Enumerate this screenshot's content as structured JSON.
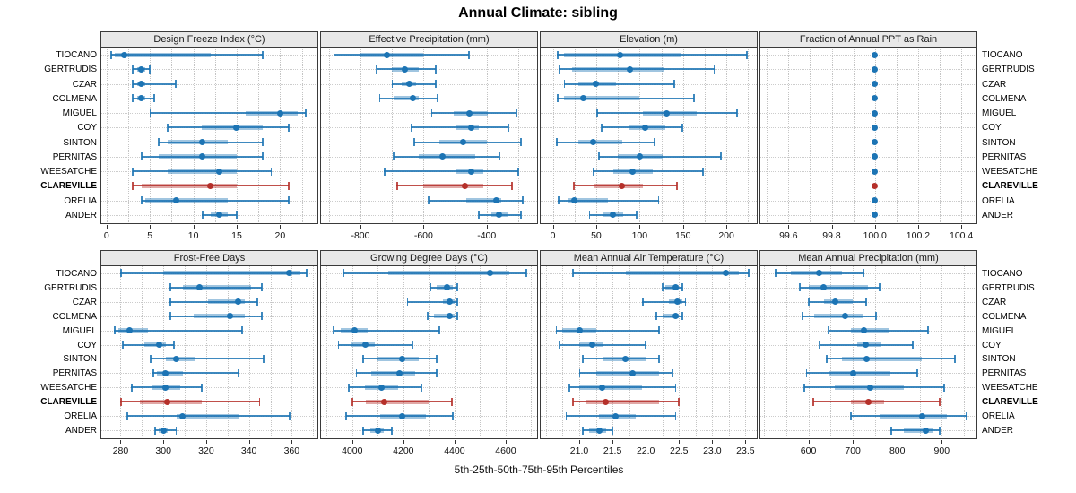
{
  "title": "Annual Climate: sibling",
  "footer_label": "5th-25th-50th-75th-95th Percentiles",
  "percentile_levels": [
    5,
    25,
    50,
    75,
    95
  ],
  "sites": [
    "TIOCANO",
    "GERTRUDIS",
    "CZAR",
    "COLMENA",
    "MIGUEL",
    "COY",
    "SINTON",
    "PERNITAS",
    "WEESATCHE",
    "CLAREVILLE",
    "ORELIA",
    "ANDER"
  ],
  "highlight_site": "CLAREVILLE",
  "colors": {
    "series_blue": "#1c74b4",
    "series_blue_band": "rgba(28,116,180,0.42)",
    "series_blue_whisker": "rgba(28,116,180,0.85)",
    "highlight_red": "#b5302a",
    "highlight_red_band": "rgba(181,48,42,0.42)",
    "highlight_red_whisker": "rgba(181,48,42,0.85)",
    "panel_header_bg": "#e8e8e8",
    "grid": "#c4c4c4"
  },
  "chart_data": [
    {
      "type": "dotplot-percentiles",
      "title": "Design Freeze Index (°C)",
      "band": "top",
      "xlim": [
        -0.6,
        24.3
      ],
      "ticks": [
        0,
        5,
        10,
        15,
        20
      ],
      "tick_labels": [
        "0",
        "5",
        "10",
        "15",
        "20"
      ],
      "minor_step": 2.5,
      "values": [
        [
          0.5,
          1,
          2,
          12,
          18
        ],
        [
          3,
          3.5,
          4,
          4.5,
          5
        ],
        [
          3,
          3.5,
          4,
          4.5,
          8
        ],
        [
          3,
          3.5,
          4,
          4.5,
          5.5
        ],
        [
          5,
          16,
          20,
          22,
          23
        ],
        [
          7,
          11,
          15,
          18,
          21
        ],
        [
          6,
          7,
          11,
          14,
          18
        ],
        [
          4,
          6,
          11,
          15,
          18
        ],
        [
          3,
          7,
          13,
          15,
          19
        ],
        [
          3,
          4,
          12,
          15,
          21
        ],
        [
          4,
          4.5,
          8,
          14,
          21
        ],
        [
          11,
          12,
          13,
          14,
          15
        ]
      ]
    },
    {
      "type": "dotplot-percentiles",
      "title": "Effective Precipitation (mm)",
      "band": "top",
      "xlim": [
        -925,
        -240
      ],
      "ticks": [
        -800,
        -600,
        -400
      ],
      "tick_labels": [
        "-800",
        "-600",
        "-400"
      ],
      "minor_step": 100,
      "values": [
        [
          -885,
          -800,
          -715,
          -600,
          -455
        ],
        [
          -750,
          -700,
          -660,
          -615,
          -560
        ],
        [
          -700,
          -670,
          -645,
          -625,
          -560
        ],
        [
          -740,
          -695,
          -635,
          -615,
          -555
        ],
        [
          -575,
          -505,
          -455,
          -395,
          -305
        ],
        [
          -640,
          -495,
          -450,
          -425,
          -330
        ],
        [
          -630,
          -550,
          -475,
          -400,
          -290
        ],
        [
          -695,
          -615,
          -540,
          -435,
          -360
        ],
        [
          -725,
          -500,
          -450,
          -410,
          -300
        ],
        [
          -685,
          -600,
          -470,
          -410,
          -320
        ],
        [
          -585,
          -465,
          -370,
          -355,
          -285
        ],
        [
          -425,
          -385,
          -360,
          -330,
          -290
        ]
      ]
    },
    {
      "type": "dotplot-percentiles",
      "title": "Elevation (m)",
      "band": "top",
      "xlim": [
        -14,
        235
      ],
      "ticks": [
        0,
        50,
        100,
        150,
        200
      ],
      "tick_labels": [
        "0",
        "50",
        "100",
        "150",
        "200"
      ],
      "minor_step": 25,
      "values": [
        [
          5,
          13,
          77,
          148,
          224
        ],
        [
          7,
          22,
          89,
          128,
          186
        ],
        [
          13,
          29,
          50,
          73,
          140
        ],
        [
          5,
          13,
          35,
          100,
          163
        ],
        [
          51,
          104,
          131,
          166,
          212
        ],
        [
          56,
          88,
          106,
          130,
          149
        ],
        [
          4,
          29,
          46,
          80,
          117
        ],
        [
          53,
          75,
          100,
          127,
          194
        ],
        [
          46,
          70,
          92,
          115,
          173
        ],
        [
          24,
          48,
          79,
          104,
          143
        ],
        [
          6,
          17,
          25,
          63,
          122
        ],
        [
          42,
          58,
          69,
          81,
          97
        ]
      ]
    },
    {
      "type": "dotplot-percentiles",
      "title": "Fraction of Annual PPT as Rain",
      "band": "top",
      "xlim": [
        99.47,
        100.47
      ],
      "ticks": [
        99.6,
        99.8,
        100.0,
        100.2,
        100.4
      ],
      "tick_labels": [
        "99.6",
        "99.8",
        "100.0",
        "100.2",
        "100.4"
      ],
      "minor_step": 0.1,
      "values": [
        [
          100,
          100,
          100,
          100,
          100
        ],
        [
          100,
          100,
          100,
          100,
          100
        ],
        [
          100,
          100,
          100,
          100,
          100
        ],
        [
          100,
          100,
          100,
          100,
          100
        ],
        [
          100,
          100,
          100,
          100,
          100
        ],
        [
          100,
          100,
          100,
          100,
          100
        ],
        [
          100,
          100,
          100,
          100,
          100
        ],
        [
          100,
          100,
          100,
          100,
          100
        ],
        [
          100,
          100,
          100,
          100,
          100
        ],
        [
          100,
          100,
          100,
          100,
          100
        ],
        [
          100,
          100,
          100,
          100,
          100
        ],
        [
          100,
          100,
          100,
          100,
          100
        ]
      ]
    },
    {
      "type": "dotplot-percentiles",
      "title": "Frost-Free Days",
      "band": "bottom",
      "xlim": [
        271,
        372
      ],
      "ticks": [
        280,
        300,
        320,
        340,
        360
      ],
      "tick_labels": [
        "280",
        "300",
        "320",
        "340",
        "360"
      ],
      "minor_step": 10,
      "values": [
        [
          280,
          300,
          359,
          364,
          367
        ],
        [
          303,
          309,
          317,
          341,
          346
        ],
        [
          303,
          321,
          335,
          338,
          344
        ],
        [
          303,
          314,
          331,
          338,
          346
        ],
        [
          277,
          279,
          284,
          293,
          337
        ],
        [
          281,
          291,
          298,
          301,
          305
        ],
        [
          294,
          301,
          306,
          315,
          347
        ],
        [
          295,
          297,
          301,
          309,
          335
        ],
        [
          285,
          295,
          301,
          308,
          318
        ],
        [
          280,
          289,
          302,
          318,
          345
        ],
        [
          283,
          306,
          309,
          335,
          359
        ],
        [
          296,
          298,
          300,
          302,
          306
        ]
      ]
    },
    {
      "type": "dotplot-percentiles",
      "title": "Growing Degree Days (°C)",
      "band": "bottom",
      "xlim": [
        3878,
        4723
      ],
      "ticks": [
        4000,
        4200,
        4400,
        4600
      ],
      "tick_labels": [
        "4000",
        "4200",
        "4400",
        "4600"
      ],
      "minor_step": 100,
      "values": [
        [
          3965,
          4140,
          4540,
          4615,
          4680
        ],
        [
          4305,
          4330,
          4370,
          4395,
          4410
        ],
        [
          4215,
          4355,
          4380,
          4400,
          4410
        ],
        [
          4295,
          4320,
          4382,
          4400,
          4410
        ],
        [
          3927,
          3955,
          4010,
          4060,
          4340
        ],
        [
          3945,
          3995,
          4050,
          4090,
          4235
        ],
        [
          4040,
          4100,
          4195,
          4260,
          4330
        ],
        [
          4015,
          4075,
          4185,
          4245,
          4330
        ],
        [
          3985,
          4050,
          4115,
          4180,
          4270
        ],
        [
          4000,
          4055,
          4125,
          4300,
          4390
        ],
        [
          3975,
          4110,
          4195,
          4290,
          4395
        ],
        [
          4040,
          4070,
          4100,
          4125,
          4155
        ]
      ]
    },
    {
      "type": "dotplot-percentiles",
      "title": "Mean Annual Air Temperature (°C)",
      "band": "bottom",
      "xlim": [
        20.42,
        23.67
      ],
      "ticks": [
        21.0,
        21.5,
        22.0,
        22.5,
        23.0,
        23.5
      ],
      "tick_labels": [
        "21.0",
        "21.5",
        "22.0",
        "22.5",
        "23.0",
        "23.5"
      ],
      "minor_step": 0.25,
      "values": [
        [
          20.9,
          21.7,
          23.2,
          23.4,
          23.55
        ],
        [
          22.25,
          22.3,
          22.45,
          22.5,
          22.55
        ],
        [
          21.95,
          22.35,
          22.47,
          22.55,
          22.6
        ],
        [
          22.15,
          22.25,
          22.45,
          22.5,
          22.55
        ],
        [
          20.65,
          20.75,
          21.0,
          21.25,
          22.2
        ],
        [
          20.7,
          21.0,
          21.2,
          21.35,
          22.0
        ],
        [
          21.05,
          21.35,
          21.7,
          22.0,
          22.2
        ],
        [
          21.0,
          21.25,
          21.8,
          22.2,
          22.4
        ],
        [
          20.85,
          21.0,
          21.35,
          21.95,
          22.45
        ],
        [
          20.9,
          21.1,
          21.4,
          22.2,
          22.5
        ],
        [
          20.8,
          21.3,
          21.55,
          21.85,
          22.45
        ],
        [
          21.05,
          21.15,
          21.3,
          21.4,
          21.5
        ]
      ]
    },
    {
      "type": "dotplot-percentiles",
      "title": "Mean Annual Precipitation (mm)",
      "band": "bottom",
      "xlim": [
        492,
        978
      ],
      "ticks": [
        600,
        700,
        800,
        900
      ],
      "tick_labels": [
        "600",
        "700",
        "800",
        "900"
      ],
      "minor_step": 50,
      "values": [
        [
          525,
          560,
          625,
          675,
          725
        ],
        [
          580,
          600,
          635,
          735,
          760
        ],
        [
          600,
          635,
          660,
          700,
          730
        ],
        [
          585,
          612,
          682,
          724,
          752
        ],
        [
          645,
          695,
          725,
          780,
          870
        ],
        [
          625,
          710,
          728,
          765,
          835
        ],
        [
          640,
          675,
          730,
          855,
          930
        ],
        [
          595,
          645,
          700,
          785,
          845
        ],
        [
          590,
          660,
          740,
          815,
          905
        ],
        [
          610,
          695,
          735,
          770,
          895
        ],
        [
          695,
          760,
          855,
          912,
          955
        ],
        [
          785,
          815,
          865,
          880,
          895
        ]
      ]
    }
  ]
}
